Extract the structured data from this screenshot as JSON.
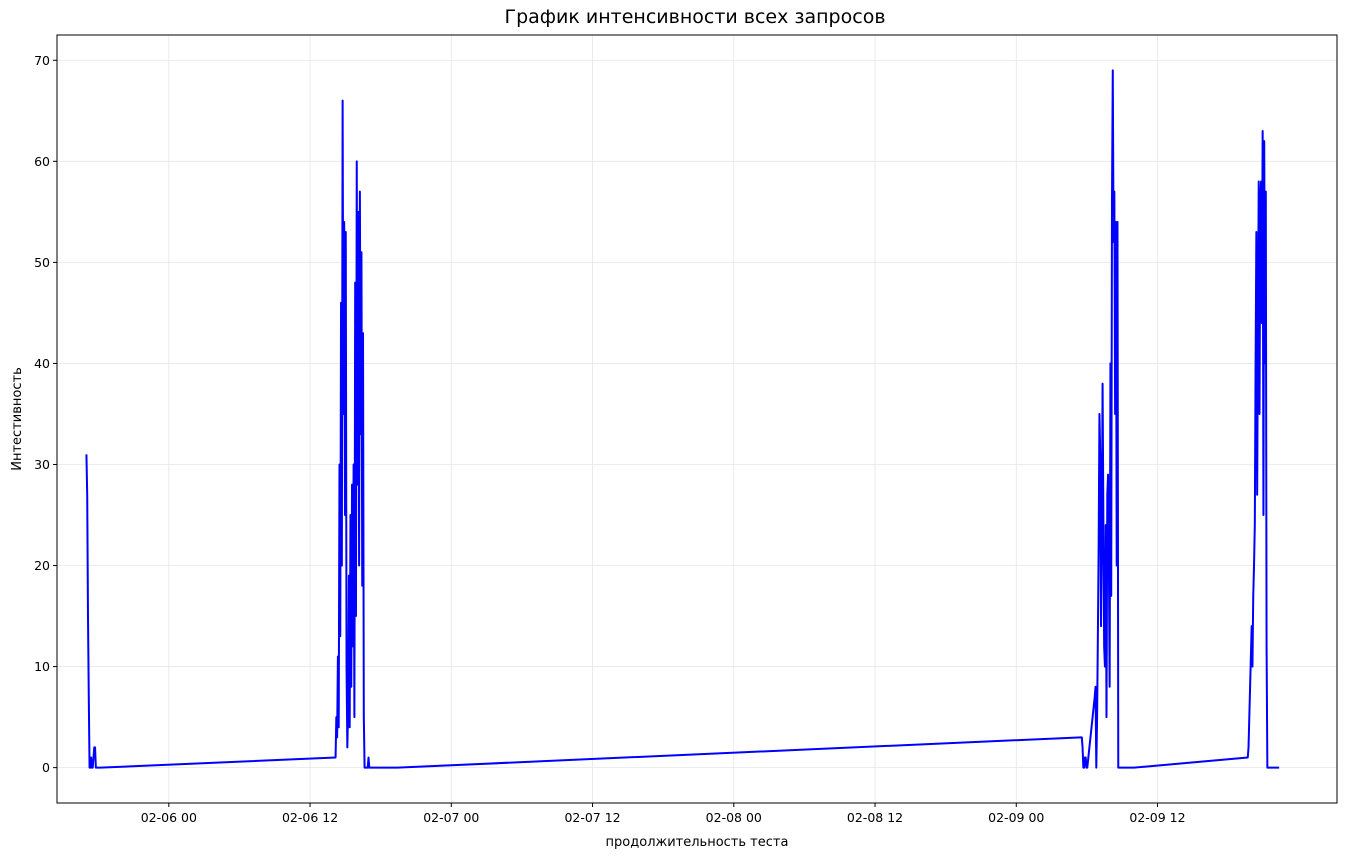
{
  "chart_data": {
    "type": "line",
    "title": "График интенсивности всех запросов",
    "xlabel": "продолжительность теста",
    "ylabel": "Интестивность",
    "x_ticks": [
      "02-06 00",
      "02-06 12",
      "02-07 00",
      "02-07 12",
      "02-08 00",
      "02-08 12",
      "02-09 00",
      "02-09 12"
    ],
    "y_ticks": [
      0,
      10,
      20,
      30,
      40,
      50,
      60,
      70
    ],
    "xlim": [
      "2025-02-05 14:30",
      "2025-02-10 03:15"
    ],
    "ylim": [
      -3.5,
      72.5
    ],
    "grid": true,
    "series_color": "#0000ff",
    "series": [
      {
        "x": [
          "2025-02-05 17:00",
          "2025-02-05 17:04",
          "2025-02-05 17:08",
          "2025-02-05 17:12",
          "2025-02-05 17:16",
          "2025-02-05 17:20",
          "2025-02-05 17:24",
          "2025-02-05 17:28",
          "2025-02-05 17:32",
          "2025-02-05 17:40",
          "2025-02-05 17:44",
          "2025-02-05 17:48",
          "2025-02-05 17:52",
          "2025-02-05 18:00",
          "2025-02-05 18:04",
          "2025-02-05 18:08",
          "2025-02-05 18:12",
          "2025-02-06 14:10",
          "2025-02-06 14:14",
          "2025-02-06 14:18",
          "2025-02-06 14:22",
          "2025-02-06 14:26",
          "2025-02-06 14:30",
          "2025-02-06 14:34",
          "2025-02-06 14:38",
          "2025-02-06 14:42",
          "2025-02-06 14:46",
          "2025-02-06 14:50",
          "2025-02-06 14:54",
          "2025-02-06 14:58",
          "2025-02-06 15:02",
          "2025-02-06 15:06",
          "2025-02-06 15:10",
          "2025-02-06 15:14",
          "2025-02-06 15:18",
          "2025-02-06 15:22",
          "2025-02-06 15:26",
          "2025-02-06 15:30",
          "2025-02-06 15:34",
          "2025-02-06 15:38",
          "2025-02-06 15:42",
          "2025-02-06 15:46",
          "2025-02-06 15:50",
          "2025-02-06 15:54",
          "2025-02-06 15:58",
          "2025-02-06 16:02",
          "2025-02-06 16:06",
          "2025-02-06 16:10",
          "2025-02-06 16:14",
          "2025-02-06 16:18",
          "2025-02-06 16:22",
          "2025-02-06 16:26",
          "2025-02-06 16:30",
          "2025-02-06 16:34",
          "2025-02-06 16:38",
          "2025-02-06 16:42",
          "2025-02-06 16:46",
          "2025-02-06 16:50",
          "2025-02-06 16:54",
          "2025-02-06 16:58",
          "2025-02-06 17:02",
          "2025-02-06 17:06",
          "2025-02-06 17:10",
          "2025-02-06 17:14",
          "2025-02-06 17:18",
          "2025-02-06 17:22",
          "2025-02-06 17:26",
          "2025-02-06 17:30",
          "2025-02-06 17:34",
          "2025-02-06 17:38",
          "2025-02-06 17:42",
          "2025-02-06 17:46",
          "2025-02-06 17:50",
          "2025-02-06 17:54",
          "2025-02-06 17:58",
          "2025-02-06 18:02",
          "2025-02-06 18:06",
          "2025-02-06 18:10",
          "2025-02-06 18:14",
          "2025-02-06 18:18",
          "2025-02-06 18:22",
          "2025-02-06 18:26",
          "2025-02-06 18:30",
          "2025-02-06 18:34",
          "2025-02-06 18:38",
          "2025-02-06 18:42",
          "2025-02-06 18:46",
          "2025-02-06 18:50",
          "2025-02-06 18:54",
          "2025-02-06 18:58",
          "2025-02-06 19:02",
          "2025-02-06 19:06",
          "2025-02-06 19:10",
          "2025-02-06 19:14",
          "2025-02-06 19:18",
          "2025-02-06 19:22",
          "2025-02-06 19:26",
          "2025-02-09 05:30",
          "2025-02-09 05:34",
          "2025-02-09 05:38",
          "2025-02-09 05:42",
          "2025-02-09 05:46",
          "2025-02-09 05:50",
          "2025-02-09 05:54",
          "2025-02-09 05:58",
          "2025-02-09 06:02",
          "2025-02-09 06:40",
          "2025-02-09 06:44",
          "2025-02-09 06:48",
          "2025-02-09 06:52",
          "2025-02-09 06:56",
          "2025-02-09 07:00",
          "2025-02-09 07:04",
          "2025-02-09 07:08",
          "2025-02-09 07:12",
          "2025-02-09 07:16",
          "2025-02-09 07:20",
          "2025-02-09 07:24",
          "2025-02-09 07:28",
          "2025-02-09 07:32",
          "2025-02-09 07:36",
          "2025-02-09 07:40",
          "2025-02-09 07:44",
          "2025-02-09 07:48",
          "2025-02-09 07:52",
          "2025-02-09 07:56",
          "2025-02-09 08:00",
          "2025-02-09 08:04",
          "2025-02-09 08:08",
          "2025-02-09 08:12",
          "2025-02-09 08:16",
          "2025-02-09 08:20",
          "2025-02-09 08:24",
          "2025-02-09 08:28",
          "2025-02-09 08:32",
          "2025-02-09 08:36",
          "2025-02-09 08:40",
          "2025-02-09 08:44",
          "2025-02-09 08:48",
          "2025-02-09 08:52",
          "2025-02-09 08:56",
          "2025-02-09 09:00",
          "2025-02-09 09:04",
          "2025-02-09 09:08",
          "2025-02-09 09:12",
          "2025-02-09 09:16",
          "2025-02-09 09:20",
          "2025-02-09 09:24",
          "2025-02-09 09:28",
          "2025-02-09 09:32",
          "2025-02-09 09:36",
          "2025-02-09 09:40",
          "2025-02-09 09:44",
          "2025-02-09 09:48",
          "2025-02-09 09:52",
          "2025-02-09 09:56",
          "2025-02-09 10:00",
          "2025-02-09 19:40",
          "2025-02-09 19:44",
          "2025-02-09 19:48",
          "2025-02-09 19:52",
          "2025-02-09 19:56",
          "2025-02-09 20:00",
          "2025-02-09 20:04",
          "2025-02-09 20:08",
          "2025-02-09 20:12",
          "2025-02-09 20:16",
          "2025-02-09 20:20",
          "2025-02-09 20:24",
          "2025-02-09 20:28",
          "2025-02-09 20:32",
          "2025-02-09 20:36",
          "2025-02-09 20:40",
          "2025-02-09 20:44",
          "2025-02-09 20:48",
          "2025-02-09 20:52",
          "2025-02-09 20:56",
          "2025-02-09 21:00",
          "2025-02-09 21:04",
          "2025-02-09 21:08",
          "2025-02-09 21:12",
          "2025-02-09 21:16",
          "2025-02-09 21:20",
          "2025-02-09 21:24",
          "2025-02-09 21:28",
          "2025-02-09 21:32",
          "2025-02-09 21:36",
          "2025-02-09 21:40",
          "2025-02-09 21:44",
          "2025-02-09 21:48",
          "2025-02-09 21:52",
          "2025-02-09 21:56",
          "2025-02-09 22:00",
          "2025-02-09 22:04",
          "2025-02-09 22:08",
          "2025-02-09 22:12",
          "2025-02-09 22:16",
          "2025-02-09 22:20"
        ],
        "y": [
          31,
          27,
          15,
          7,
          0,
          0,
          1,
          0,
          0,
          2,
          2,
          0,
          0,
          0,
          0,
          0,
          0,
          1,
          5,
          3,
          11,
          4,
          30,
          13,
          46,
          20,
          66,
          35,
          54,
          25,
          53,
          10,
          2,
          6,
          19,
          4,
          25,
          8,
          28,
          12,
          30,
          5,
          48,
          15,
          60,
          28,
          55,
          20,
          57,
          33,
          51,
          18,
          43,
          5,
          0,
          0,
          0,
          0,
          0,
          1,
          0,
          0,
          0,
          0,
          0,
          0,
          0,
          0,
          0,
          0,
          0,
          0,
          0,
          0,
          0,
          0,
          0,
          0,
          0,
          0,
          0,
          0,
          0,
          0,
          0,
          0,
          0,
          0,
          0,
          0,
          0,
          0,
          0,
          0,
          0,
          0,
          0,
          3,
          3,
          2,
          0,
          0,
          1,
          1,
          0,
          0,
          7,
          8,
          0,
          5,
          13,
          22,
          35,
          31,
          14,
          22,
          38,
          25,
          12,
          10,
          24,
          5,
          27,
          29,
          21,
          8,
          40,
          17,
          56,
          69,
          52,
          57,
          35,
          54,
          20,
          54,
          0,
          0,
          0,
          0,
          0,
          0,
          0,
          0,
          0,
          0,
          0,
          0,
          0,
          0,
          0,
          0,
          0,
          0,
          0,
          0,
          0,
          1,
          2,
          5,
          8,
          11,
          14,
          10,
          17,
          20,
          24,
          40,
          53,
          27,
          43,
          58,
          35,
          56,
          58,
          44,
          63,
          25,
          62,
          40,
          57,
          12,
          0,
          0,
          0,
          0,
          0,
          0,
          0,
          0,
          0,
          0,
          0,
          0,
          0,
          0,
          0,
          0
        ]
      }
    ]
  }
}
